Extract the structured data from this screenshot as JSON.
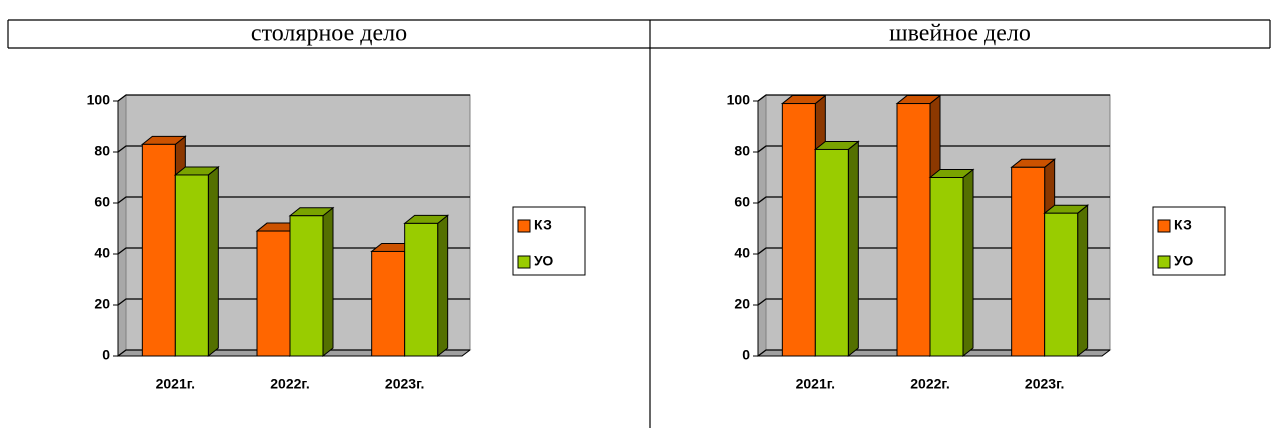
{
  "table": {
    "headers": [
      "столярное дело",
      "швейное дело"
    ]
  },
  "chart_data": [
    {
      "type": "bar",
      "categories": [
        "2021г.",
        "2022г.",
        "2023г."
      ],
      "series": [
        {
          "name": "КЗ",
          "color": "#ff6600",
          "values": [
            83,
            49,
            41
          ]
        },
        {
          "name": "УО",
          "color": "#99cc00",
          "values": [
            71,
            55,
            52
          ]
        }
      ],
      "ylim": [
        0,
        100
      ],
      "yticks": [
        0,
        20,
        40,
        60,
        80,
        100
      ],
      "grid": true,
      "legend": "right"
    },
    {
      "type": "bar",
      "categories": [
        "2021г.",
        "2022г.",
        "2023г."
      ],
      "series": [
        {
          "name": "КЗ",
          "color": "#ff6600",
          "values": [
            99,
            99,
            74
          ]
        },
        {
          "name": "УО",
          "color": "#99cc00",
          "values": [
            81,
            70,
            56
          ]
        }
      ],
      "ylim": [
        0,
        100
      ],
      "yticks": [
        0,
        20,
        40,
        60,
        80,
        100
      ],
      "grid": true,
      "legend": "right"
    }
  ]
}
